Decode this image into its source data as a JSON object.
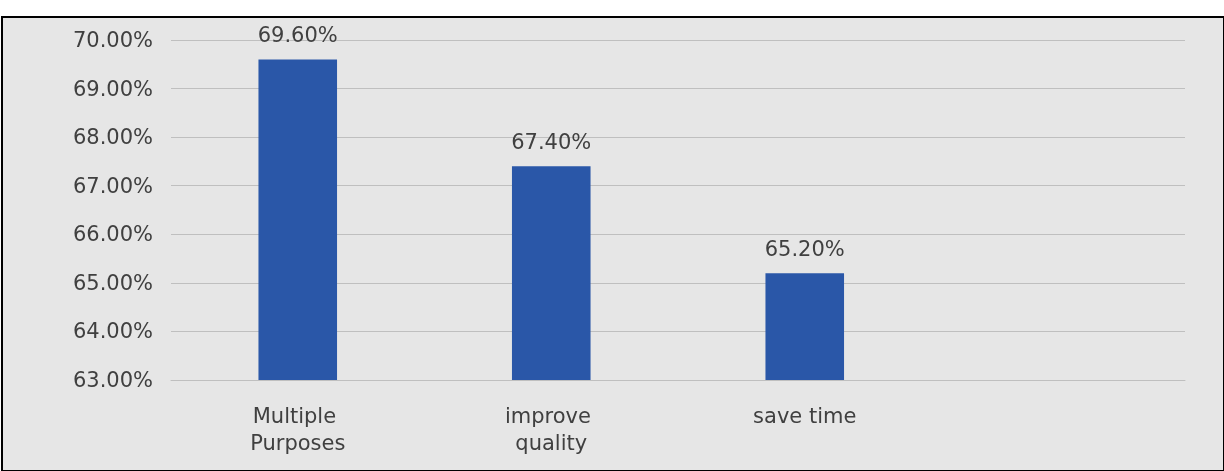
{
  "chart_data": {
    "type": "bar",
    "categories": [
      "Multiple Purposes",
      "improve quality",
      "save time",
      null
    ],
    "values": [
      69.6,
      67.4,
      65.2,
      null
    ],
    "value_labels": [
      "69.60%",
      "67.40%",
      "65.20%",
      null
    ],
    "color": "#2a57a8",
    "ylim": [
      63,
      70
    ],
    "yticks": [
      {
        "value": 63,
        "label": "63.00%"
      },
      {
        "value": 64,
        "label": "64.00%"
      },
      {
        "value": 65,
        "label": "65.00%"
      },
      {
        "value": 66,
        "label": "66.00%"
      },
      {
        "value": 67,
        "label": "67.00%"
      },
      {
        "value": 68,
        "label": "68.00%"
      },
      {
        "value": 69,
        "label": "69.00%"
      },
      {
        "value": 70,
        "label": "70.00%"
      }
    ],
    "grid": "y"
  }
}
